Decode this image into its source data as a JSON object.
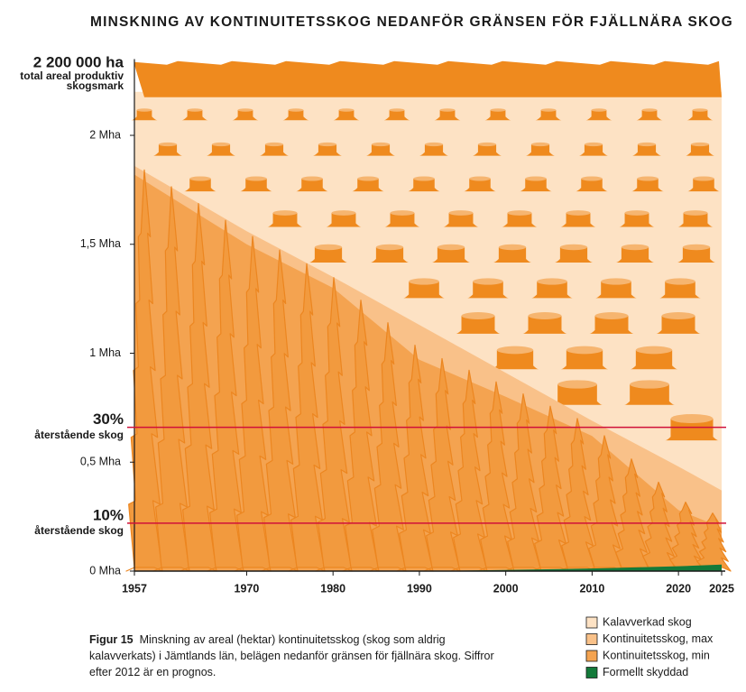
{
  "chart_data": {
    "type": "area",
    "title": "MINSKNING AV KONTINUITETSSKOG NEDANFÖR GRÄNSEN FÖR FJÄLLNÄRA SKOG",
    "x": [
      1957,
      1970,
      1980,
      1990,
      2000,
      2010,
      2020,
      2025
    ],
    "series": [
      {
        "name": "Kalavverkad skog",
        "color": "#fde2c4",
        "values": [
          2.2,
          2.2,
          2.2,
          2.2,
          2.2,
          2.2,
          2.2,
          2.2
        ]
      },
      {
        "name": "Kontinuitetsskog, max",
        "color": "#f9c189",
        "values": [
          1.86,
          1.56,
          1.35,
          1.13,
          0.91,
          0.69,
          0.48,
          0.37
        ]
      },
      {
        "name": "Kontinuitetsskog, min",
        "color": "#f4a350",
        "values": [
          1.82,
          1.5,
          1.3,
          0.97,
          0.8,
          0.62,
          0.28,
          0.2
        ]
      },
      {
        "name": "Formellt skyddad",
        "color": "#137a3a",
        "values": [
          null,
          null,
          null,
          0,
          0.005,
          0.012,
          0.022,
          0.03
        ]
      }
    ],
    "total": {
      "value": 2.2,
      "label": "2 200 000 ha",
      "sublabel": "total areal produktiv skogsmark"
    },
    "reference_lines": [
      {
        "value": 0.66,
        "label": "30%",
        "sublabel": "återstående skog",
        "color": "#d0103a"
      },
      {
        "value": 0.22,
        "label": "10%",
        "sublabel": "återstående skog",
        "color": "#d0103a"
      }
    ],
    "xlim": [
      1957,
      2025
    ],
    "xticks": [
      1957,
      1970,
      1980,
      1990,
      2000,
      2010,
      2020,
      2025
    ],
    "ylim": [
      0,
      2.35
    ],
    "yticks": [
      {
        "value": 0,
        "label": "0 Mha"
      },
      {
        "value": 0.5,
        "label": "0,5 Mha"
      },
      {
        "value": 1,
        "label": "1 Mha"
      },
      {
        "value": 1.5,
        "label": "1,5 Mha"
      },
      {
        "value": 2,
        "label": "2 Mha"
      }
    ],
    "legend": "bottom-right",
    "figure_label": "Figur 15",
    "caption": "Minskning av areal (hektar) kontinuitetsskog (skog som aldrig kalavverkats) i Jämtlands län, belägen nedanför gränsen för fjällnära skog. Siffror efter 2012 är en prognos."
  }
}
